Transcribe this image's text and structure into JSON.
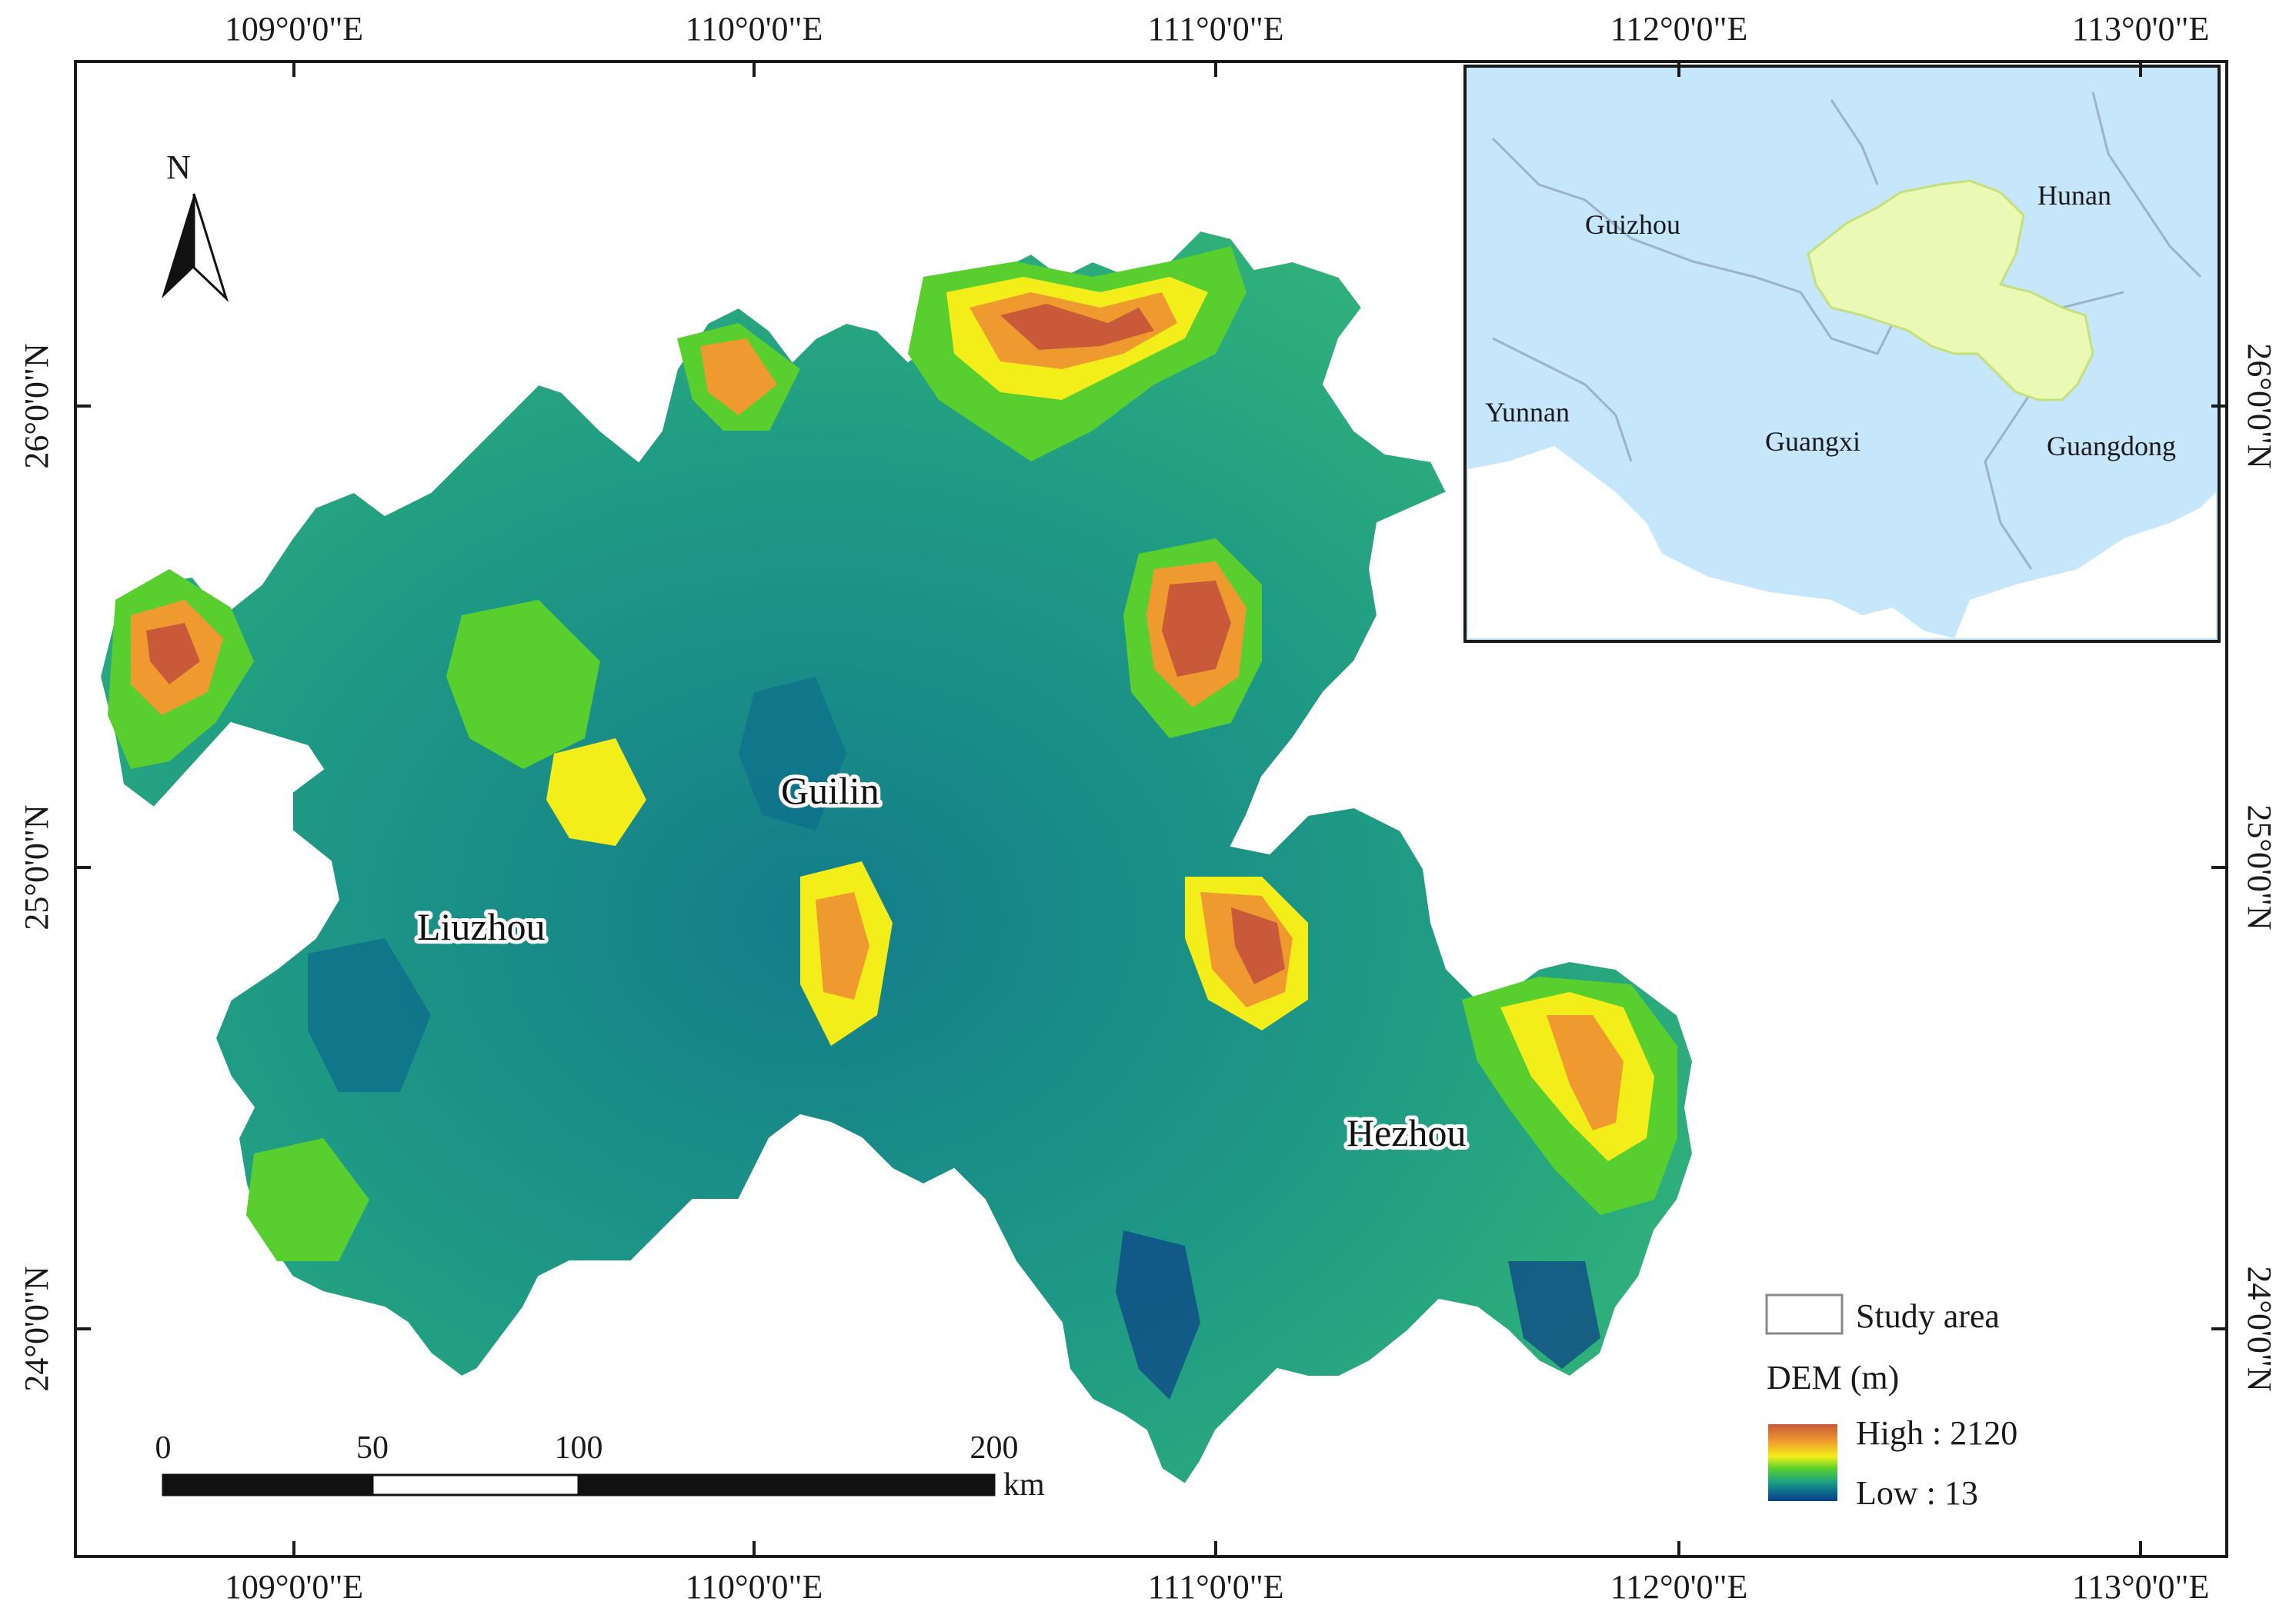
{
  "axes": {
    "top_lon": [
      "109°0'0\"E",
      "110°0'0\"E",
      "111°0'0\"E",
      "112°0'0\"E",
      "113°0'0\"E"
    ],
    "bottom_lon": [
      "109°0'0\"E",
      "110°0'0\"E",
      "111°0'0\"E",
      "112°0'0\"E",
      "113°0'0\"E"
    ],
    "left_lat": [
      "26°0'0\"N",
      "25°0'0\"N",
      "24°0'0\"N"
    ],
    "right_lat": [
      "26°0'0\"N",
      "25°0'0\"N",
      "24°0'0\"N"
    ]
  },
  "north_arrow": {
    "label": "N"
  },
  "cities": [
    "Guilin",
    "Liuzhou",
    "Hezhou"
  ],
  "inset": {
    "provinces": [
      "Guizhou",
      "Hunan",
      "Yunnan",
      "Guangxi",
      "Guangdong"
    ],
    "colors": {
      "background": "#c6e6fb",
      "study_area": "#eaf9b4",
      "border": "#9ab3c8"
    }
  },
  "legend": {
    "study_area_label": "Study area",
    "dem_title": "DEM (m)",
    "high_label": "High : 2120",
    "low_label": "Low : 13",
    "dem_colors": [
      "#c85a3a",
      "#ef9a2e",
      "#f3ee1a",
      "#58cf2e",
      "#21a57f",
      "#0c6a8c",
      "#0b3f87"
    ]
  },
  "scale_bar": {
    "ticks": [
      "0",
      "50",
      "100",
      "200"
    ],
    "unit": "km"
  }
}
